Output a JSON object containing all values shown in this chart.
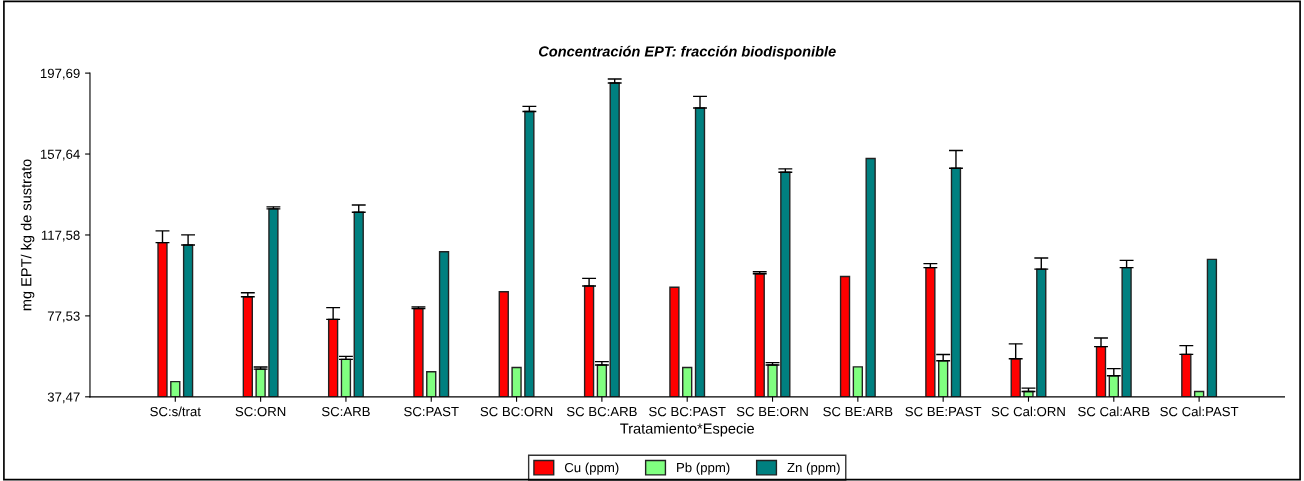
{
  "chart_data": {
    "type": "bar",
    "title": "Concentración EPT: fracción biodisponible",
    "xlabel": "Tratamiento*Especie",
    "ylabel": "mg EPT/ kg de sustrato",
    "categories": [
      "SC:s/trat",
      "SC:ORN",
      "SC:ARB",
      "SC:PAST",
      "SC BC:ORN",
      "SC BC:ARB",
      "SC BC:PAST",
      "SC BE:ORN",
      "SC BE:ARB",
      "SC BE:PAST",
      "SC Cal:ORN",
      "SC Cal:ARB",
      "SC Cal:PAST"
    ],
    "series": [
      {
        "name": "Cu (ppm)",
        "color": "#ff0000",
        "values": [
          113.8,
          87.0,
          75.8,
          81.2,
          89.5,
          92.3,
          91.7,
          98.4,
          97.0,
          101.4,
          56.3,
          62.3,
          58.5
        ],
        "errors": [
          [
            113.8,
            119.6
          ],
          [
            87.0,
            89.0
          ],
          [
            75.8,
            81.6
          ],
          [
            81.2,
            82.0
          ],
          null,
          [
            92.3,
            96.1
          ],
          null,
          [
            98.4,
            99.4
          ],
          null,
          [
            101.4,
            103.4
          ],
          [
            56.3,
            63.7
          ],
          [
            62.3,
            66.6
          ],
          [
            58.5,
            62.8
          ]
        ]
      },
      {
        "name": "Pb (ppm)",
        "color": "#80ff80",
        "values": [
          45.0,
          51.2,
          56.0,
          49.9,
          52.0,
          53.2,
          52.0,
          53.2,
          52.3,
          55.3,
          40.1,
          47.9,
          40.1
        ],
        "errors": [
          null,
          [
            51.2,
            52.2
          ],
          [
            56.0,
            57.5
          ],
          null,
          null,
          [
            53.2,
            54.9
          ],
          null,
          [
            53.2,
            54.4
          ],
          null,
          [
            55.3,
            58.4
          ],
          [
            40.1,
            41.8
          ],
          [
            47.9,
            51.4
          ],
          null
        ]
      },
      {
        "name": "Zn (ppm)",
        "color": "#008080",
        "values": [
          112.6,
          130.5,
          128.8,
          109.3,
          178.7,
          192.8,
          180.4,
          148.6,
          155.4,
          150.6,
          100.7,
          101.4,
          105.5
        ],
        "errors": [
          [
            112.6,
            117.6
          ],
          [
            130.5,
            131.5
          ],
          [
            128.8,
            132.4
          ],
          null,
          [
            178.7,
            181.2
          ],
          [
            192.8,
            194.8
          ],
          [
            180.4,
            186.2
          ],
          [
            148.6,
            150.3
          ],
          null,
          [
            150.6,
            159.4
          ],
          [
            100.7,
            106.2
          ],
          [
            101.4,
            105.0
          ],
          null
        ]
      }
    ],
    "ylim": [
      37.47,
      197.69
    ],
    "yticks": [
      {
        "value": 37.47,
        "label": "37,47"
      },
      {
        "value": 77.53,
        "label": "77,53"
      },
      {
        "value": 117.58,
        "label": "117,58"
      },
      {
        "value": 157.64,
        "label": "157,64"
      },
      {
        "value": 197.69,
        "label": "197,69"
      }
    ],
    "grid": false,
    "legend": "bottom"
  }
}
